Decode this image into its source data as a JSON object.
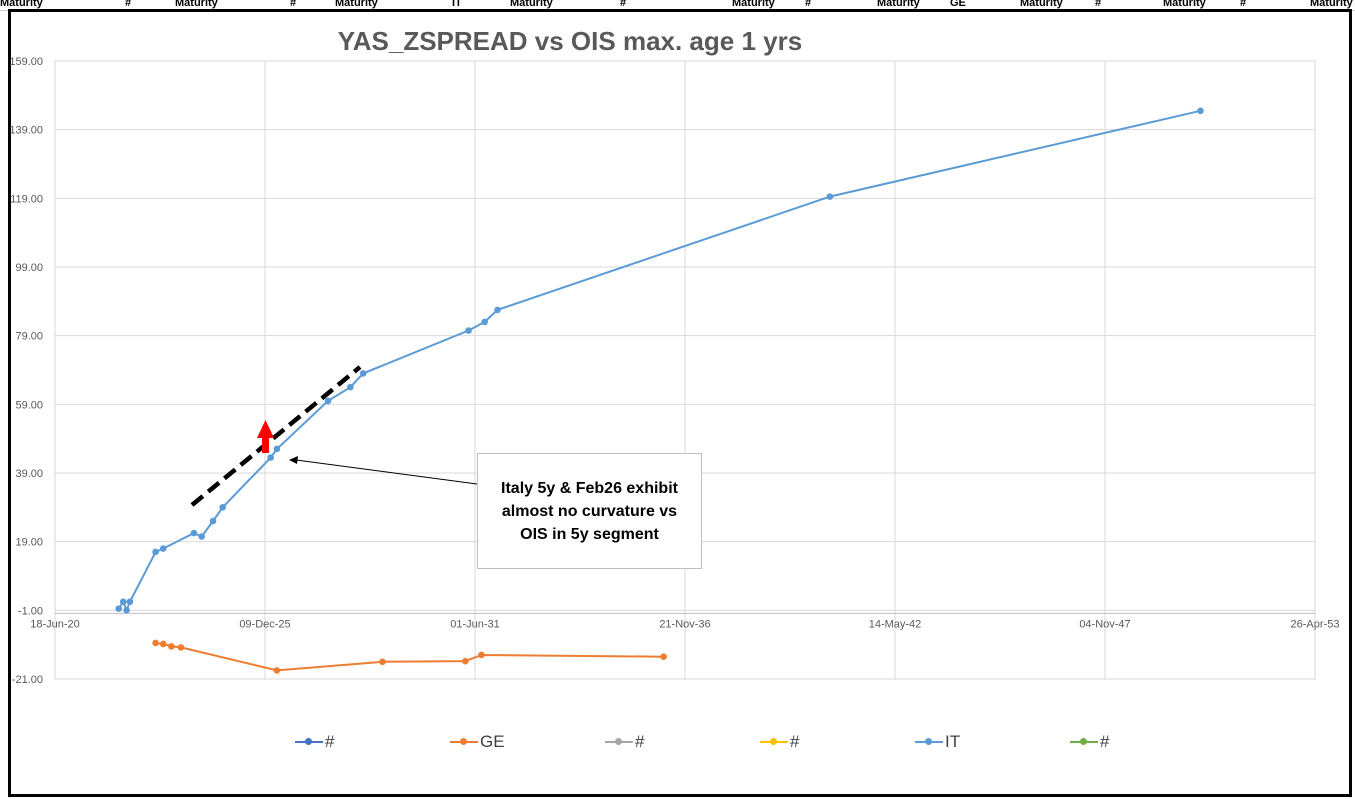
{
  "sheet_headers": [
    "Maturity",
    "#",
    "Maturity",
    "#",
    "Maturity",
    "IT",
    "Maturity",
    "#",
    "Maturity",
    "#",
    "Maturity",
    "GE",
    "Maturity",
    "#",
    "Maturity",
    "#",
    "Maturity"
  ],
  "annotation": {
    "lines": [
      "Italy 5y &  Feb26  exhibit",
      "almost no curvature vs",
      "OIS in 5y segment"
    ]
  },
  "chart_data": {
    "type": "line",
    "title": "YAS_ZSPREAD vs OIS max. age 1 yrs",
    "xlabel": "",
    "ylabel": "",
    "x_axis_type": "date",
    "xlim": [
      "2020-06-18",
      "2053-04-26"
    ],
    "x_ticks": [
      "2020-06-18",
      "2025-12-09",
      "2031-06-01",
      "2036-11-21",
      "2042-05-14",
      "2047-11-04",
      "2053-04-26"
    ],
    "x_tick_labels": [
      "18-Jun-20",
      "09-Dec-25",
      "01-Jun-31",
      "21-Nov-36",
      "14-May-42",
      "04-Nov-47",
      "26-Apr-53"
    ],
    "ylim": [
      -21,
      159
    ],
    "y_ticks": [
      -21,
      -1,
      19,
      39,
      59,
      79,
      99,
      119,
      139,
      159
    ],
    "y_tick_labels": [
      "-21.00",
      "-1.00",
      "19.00",
      "39.00",
      "59.00",
      "79.00",
      "99.00",
      "119.00",
      "139.00",
      "159.00"
    ],
    "grid": true,
    "legend_position": "bottom",
    "legend": [
      {
        "name": "#",
        "color": "#4472C4"
      },
      {
        "name": "GE",
        "color": "#ED7D31"
      },
      {
        "name": "#",
        "color": "#A5A5A5"
      },
      {
        "name": "#",
        "color": "#FFC000"
      },
      {
        "name": "IT",
        "color": "#5B9BD5"
      },
      {
        "name": "#",
        "color": "#70AD47"
      }
    ],
    "series": [
      {
        "name": "IT",
        "color": "#5B9BD5",
        "points": [
          {
            "x": "2022-02-15",
            "y": -0.5
          },
          {
            "x": "2022-03-30",
            "y": 1.5
          },
          {
            "x": "2022-05-01",
            "y": -1.0
          },
          {
            "x": "2022-06-01",
            "y": 1.5
          },
          {
            "x": "2023-02-01",
            "y": 16
          },
          {
            "x": "2023-04-15",
            "y": 17
          },
          {
            "x": "2024-02-01",
            "y": 21.5
          },
          {
            "x": "2024-04-15",
            "y": 20.5
          },
          {
            "x": "2024-08-01",
            "y": 25
          },
          {
            "x": "2024-11-01",
            "y": 29
          },
          {
            "x": "2026-02-01",
            "y": 43.5
          },
          {
            "x": "2026-04-01",
            "y": 46
          },
          {
            "x": "2027-08-01",
            "y": 60
          },
          {
            "x": "2028-03-01",
            "y": 64
          },
          {
            "x": "2028-07-01",
            "y": 68
          },
          {
            "x": "2031-04-01",
            "y": 80.5
          },
          {
            "x": "2031-09-01",
            "y": 83
          },
          {
            "x": "2032-01-01",
            "y": 86.5
          },
          {
            "x": "2040-09-01",
            "y": 119.5
          },
          {
            "x": "2050-05-01",
            "y": 144.5
          }
        ]
      },
      {
        "name": "GE",
        "color": "#ED7D31",
        "points": [
          {
            "x": "2023-02-01",
            "y": -10.5
          },
          {
            "x": "2023-04-15",
            "y": -10.8
          },
          {
            "x": "2023-07-01",
            "y": -11.5
          },
          {
            "x": "2023-10-01",
            "y": -11.8
          },
          {
            "x": "2026-04-01",
            "y": -18.5
          },
          {
            "x": "2029-01-01",
            "y": -16
          },
          {
            "x": "2031-03-01",
            "y": -15.8
          },
          {
            "x": "2031-08-01",
            "y": -14
          },
          {
            "x": "2036-05-01",
            "y": -14.5
          }
        ]
      }
    ]
  }
}
